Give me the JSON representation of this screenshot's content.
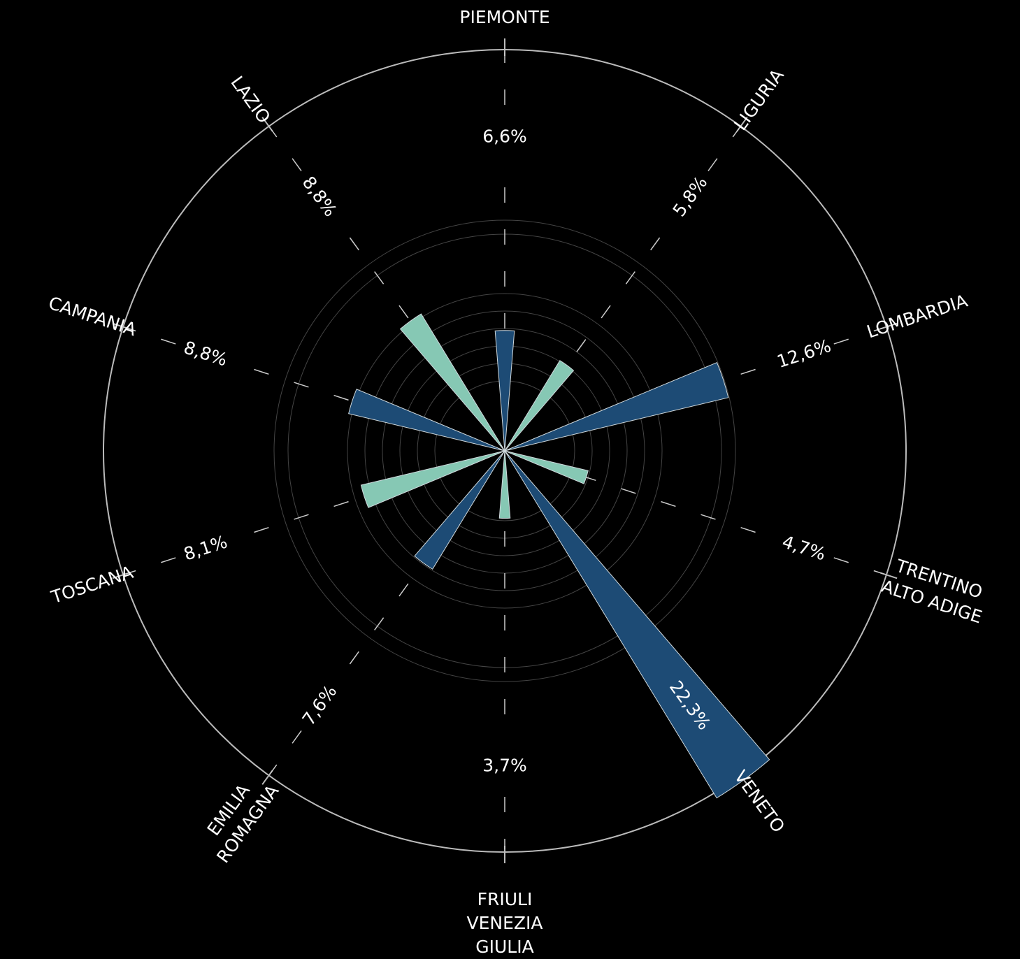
{
  "chart_data": {
    "type": "polar_bar",
    "categories": [
      "PIEMONTE",
      "LIGURIA",
      "LOMBARDIA",
      "TRENTINO\nALTO ADIGE",
      "VENETO",
      "FRIULI\nVENEZIA\nGIULIA",
      "EMILIA\nROMAGNA",
      "TOSCANA",
      "CAMPANIA",
      "LAZIO"
    ],
    "values": [
      6.6,
      5.8,
      12.6,
      4.7,
      22.3,
      3.7,
      7.6,
      8.1,
      8.8,
      8.8
    ],
    "value_labels": [
      "6,6%",
      "5,8%",
      "12,6%",
      "4,7%",
      "22,3%",
      "3,7%",
      "7,6%",
      "8,1%",
      "8,8%",
      "8,8%"
    ],
    "colors": [
      "#1d4b75",
      "#86c8b4",
      "#1d4b75",
      "#86c8b4",
      "#1d4b75",
      "#86c8b4",
      "#1d4b75",
      "#86c8b4",
      "#1d4b75",
      "#86c8b4"
    ],
    "rlim": [
      0,
      22
    ]
  }
}
